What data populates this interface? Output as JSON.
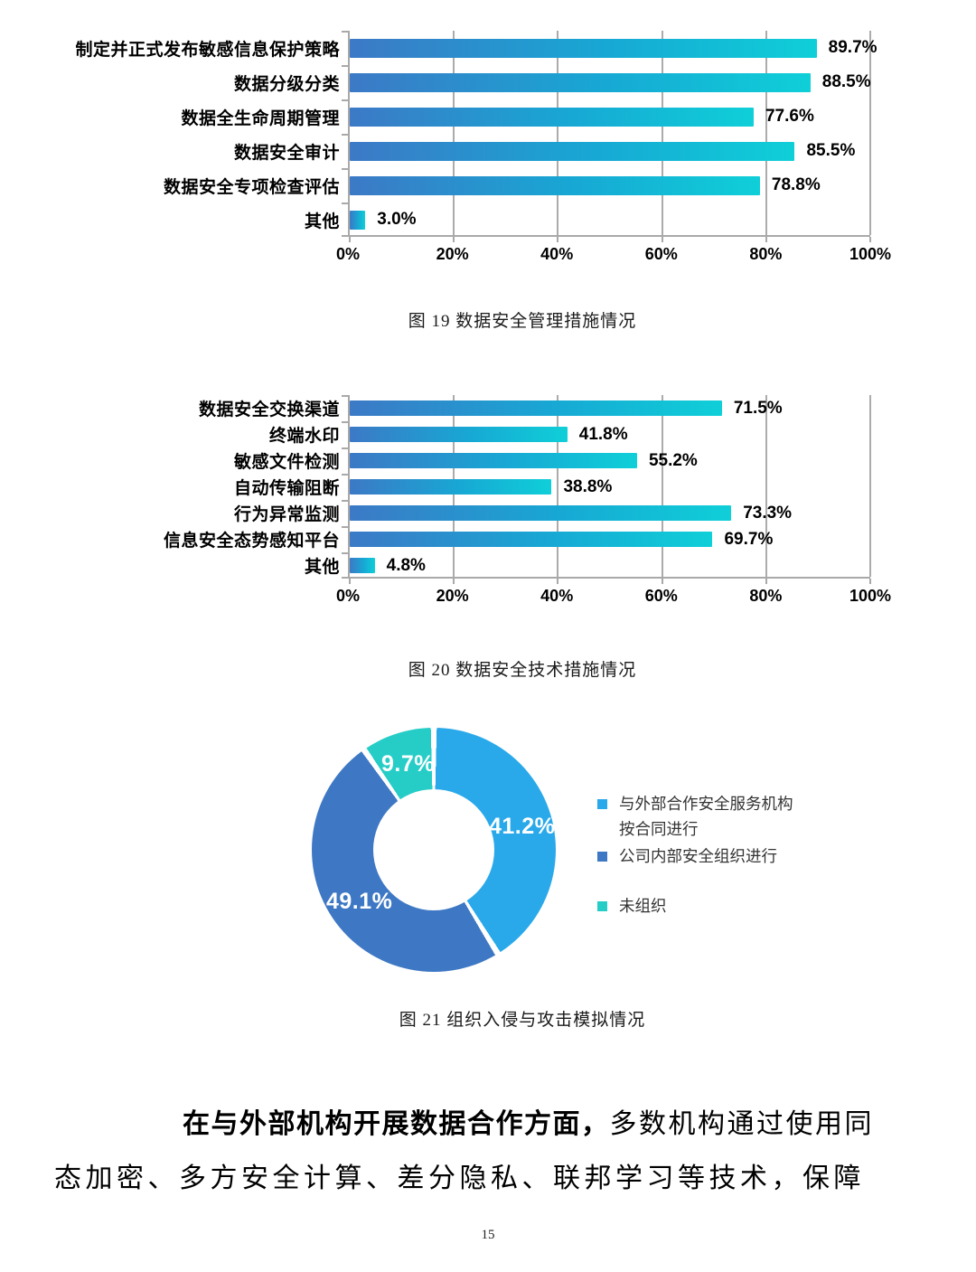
{
  "chart_data": [
    {
      "id": "fig19",
      "type": "bar",
      "orientation": "horizontal",
      "title": "图 19 数据安全管理措施情况",
      "categories": [
        "制定并正式发布敏感信息保护策略",
        "数据分级分类",
        "数据全生命周期管理",
        "数据安全审计",
        "数据安全专项检查评估",
        "其他"
      ],
      "values": [
        89.7,
        88.5,
        77.6,
        85.5,
        78.8,
        3.0
      ],
      "value_labels": [
        "89.7%",
        "88.5%",
        "77.6%",
        "85.5%",
        "78.8%",
        "3.0%"
      ],
      "x_ticks": [
        "0%",
        "20%",
        "40%",
        "60%",
        "80%",
        "100%"
      ],
      "xlim": [
        0,
        100
      ],
      "grid": true,
      "bar_gradient": [
        "#3C79C6",
        "#17A8D4",
        "#0FCFD8"
      ]
    },
    {
      "id": "fig20",
      "type": "bar",
      "orientation": "horizontal",
      "title": "图 20 数据安全技术措施情况",
      "categories": [
        "数据安全交换渠道",
        "终端水印",
        "敏感文件检测",
        "自动传输阻断",
        "行为异常监测",
        "信息安全态势感知平台",
        "其他"
      ],
      "values": [
        71.5,
        41.8,
        55.2,
        38.8,
        73.3,
        69.7,
        4.8
      ],
      "value_labels": [
        "71.5%",
        "41.8%",
        "55.2%",
        "38.8%",
        "73.3%",
        "69.7%",
        "4.8%"
      ],
      "x_ticks": [
        "0%",
        "20%",
        "40%",
        "60%",
        "80%",
        "100%"
      ],
      "xlim": [
        0,
        100
      ],
      "grid": true,
      "bar_gradient": [
        "#3C79C6",
        "#17A8D4",
        "#0FCFD8"
      ]
    },
    {
      "id": "fig21",
      "type": "donut",
      "title": "图 21 组织入侵与攻击模拟情况",
      "slices": [
        {
          "label": "与外部合作安全服务机构按合同进行",
          "value": 41.2,
          "value_label": "41.2%",
          "color": "#29A9EA"
        },
        {
          "label": "公司内部安全组织进行",
          "value": 49.1,
          "value_label": "49.1%",
          "color": "#3E78C4"
        },
        {
          "label": "未组织",
          "value": 9.7,
          "value_label": "9.7%",
          "color": "#26CDC7"
        }
      ],
      "legend_position": "right"
    }
  ],
  "axis_color": "#A9A9A9",
  "body_text": {
    "bold_lead": "在与外部机构开展数据合作方面，",
    "regular_line1": "多数机构通过使用同",
    "line2": "态加密、多方安全计算、差分隐私、联邦学习等技术，保障"
  },
  "page": {
    "number": "15"
  }
}
